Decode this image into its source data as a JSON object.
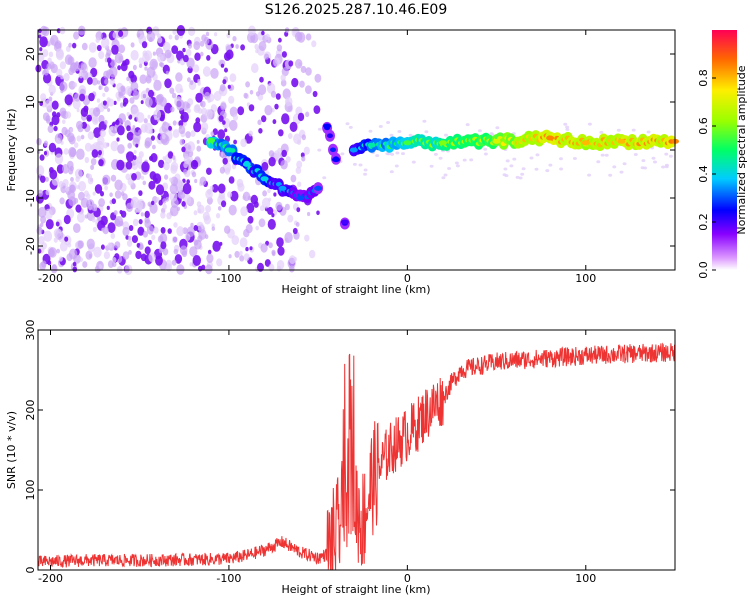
{
  "title": "S126.2025.287.10.46.E09",
  "chart_data": [
    {
      "type": "heatmap",
      "xlabel": "Height of straight line (km)",
      "ylabel": "Frequency (Hz)",
      "xlim": [
        -207,
        150
      ],
      "ylim": [
        -25,
        25
      ],
      "xticks": [
        -200,
        -100,
        0,
        100
      ],
      "yticks": [
        -20,
        -10,
        0,
        10,
        20
      ],
      "colorbar": {
        "label": "Normalized spectral amplitude",
        "range": [
          0,
          1
        ],
        "ticks": [
          "0.0",
          "0.2",
          "0.4",
          "0.6",
          "0.8"
        ],
        "tick_values": [
          0,
          0.2,
          0.4,
          0.6,
          0.8
        ]
      },
      "ridge": [
        {
          "x": -110,
          "y": 2,
          "a": 0.55
        },
        {
          "x": -100,
          "y": 0,
          "a": 0.45
        },
        {
          "x": -90,
          "y": -3,
          "a": 0.4
        },
        {
          "x": -80,
          "y": -6,
          "a": 0.4
        },
        {
          "x": -70,
          "y": -8,
          "a": 0.35
        },
        {
          "x": -60,
          "y": -10,
          "a": 0.3
        },
        {
          "x": -50,
          "y": -8,
          "a": 0.3
        },
        {
          "x": -45,
          "y": 5,
          "a": 0.25
        },
        {
          "x": -40,
          "y": -2,
          "a": 0.25
        },
        {
          "x": -35,
          "y": -15,
          "a": 0.2
        },
        {
          "x": -30,
          "y": 0,
          "a": 0.35
        },
        {
          "x": -20,
          "y": 1,
          "a": 0.45
        },
        {
          "x": 0,
          "y": 1.5,
          "a": 0.55
        },
        {
          "x": 20,
          "y": 1.5,
          "a": 0.6
        },
        {
          "x": 50,
          "y": 1.8,
          "a": 0.7
        },
        {
          "x": 80,
          "y": 2.5,
          "a": 0.85
        },
        {
          "x": 100,
          "y": 1.5,
          "a": 0.8
        },
        {
          "x": 120,
          "y": 1.8,
          "a": 0.8
        },
        {
          "x": 150,
          "y": 1.8,
          "a": 0.85
        }
      ]
    },
    {
      "type": "line",
      "xlabel": "Height of straight line (km)",
      "ylabel": "SNR (10 * v/v)",
      "xlim": [
        -207,
        150
      ],
      "ylim": [
        0,
        300
      ],
      "xticks": [
        -200,
        -100,
        0,
        100
      ],
      "yticks": [
        0,
        100,
        200,
        300
      ],
      "color": "#ee3333",
      "series": [
        {
          "name": "SNR",
          "x": [
            -207,
            -180,
            -150,
            -120,
            -100,
            -90,
            -80,
            -70,
            -60,
            -50,
            -45,
            -40,
            -35,
            -32,
            -30,
            -25,
            -20,
            -15,
            -10,
            -5,
            0,
            5,
            10,
            15,
            20,
            25,
            30,
            40,
            50,
            60,
            80,
            100,
            120,
            150
          ],
          "y": [
            10,
            12,
            12,
            13,
            14,
            18,
            25,
            35,
            22,
            15,
            20,
            40,
            80,
            120,
            90,
            60,
            110,
            130,
            150,
            160,
            170,
            180,
            195,
            205,
            215,
            235,
            250,
            255,
            260,
            262,
            265,
            268,
            270,
            272
          ]
        }
      ]
    }
  ]
}
